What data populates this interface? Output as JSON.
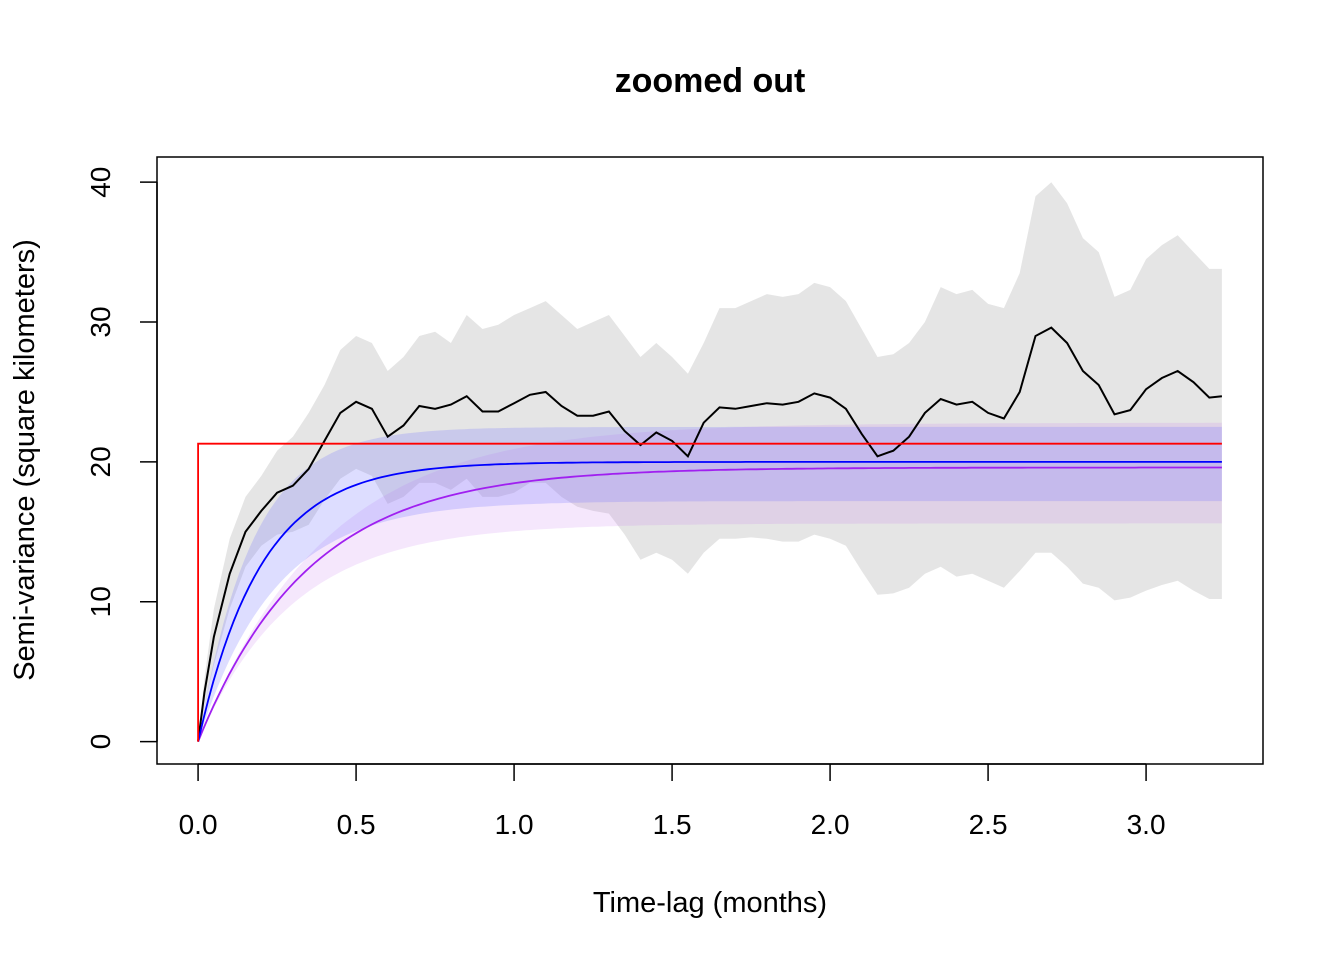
{
  "chart_data": {
    "type": "line",
    "title": "zoomed out",
    "xlabel": "Time-lag (months)",
    "ylabel": "Semi-variance (square kilometers)",
    "xlim": [
      -0.13,
      3.37
    ],
    "ylim": [
      -1.6,
      41.8
    ],
    "xticks": [
      "0.0",
      "0.5",
      "1.0",
      "1.5",
      "2.0",
      "2.5",
      "3.0"
    ],
    "yticks": [
      "0",
      "10",
      "20",
      "30",
      "40"
    ],
    "colors": {
      "empirical": "#000000",
      "empirical_ci": "#e5e5e5",
      "model_blue": "#0000ff",
      "model_blue_ci": "rgba(120,120,255,0.25)",
      "model_purple": "#a020f0",
      "model_purple_ci": "rgba(200,120,240,0.18)",
      "model_red": "#ff0000",
      "axes": "#000000"
    },
    "series": [
      {
        "key": "empirical",
        "style": "line",
        "x": [
          0,
          0.02,
          0.05,
          0.1,
          0.15,
          0.2,
          0.25,
          0.3,
          0.35,
          0.4,
          0.45,
          0.5,
          0.55,
          0.6,
          0.65,
          0.7,
          0.75,
          0.8,
          0.85,
          0.9,
          0.95,
          1.0,
          1.05,
          1.1,
          1.15,
          1.2,
          1.25,
          1.3,
          1.35,
          1.4,
          1.45,
          1.5,
          1.55,
          1.6,
          1.65,
          1.7,
          1.75,
          1.8,
          1.85,
          1.9,
          1.95,
          2.0,
          2.05,
          2.1,
          2.15,
          2.2,
          2.25,
          2.3,
          2.35,
          2.4,
          2.45,
          2.5,
          2.55,
          2.6,
          2.65,
          2.7,
          2.75,
          2.8,
          2.85,
          2.9,
          2.95,
          3.0,
          3.05,
          3.1,
          3.15,
          3.2,
          3.24
        ],
        "y": [
          0,
          3.5,
          7.5,
          12.0,
          15.0,
          16.5,
          17.8,
          18.3,
          19.5,
          21.5,
          23.5,
          24.3,
          23.8,
          21.8,
          22.6,
          24.0,
          23.8,
          24.1,
          24.7,
          23.6,
          23.6,
          24.2,
          24.8,
          25.0,
          24.0,
          23.3,
          23.3,
          23.6,
          22.2,
          21.2,
          22.1,
          21.5,
          20.4,
          22.8,
          23.9,
          23.8,
          24.0,
          24.2,
          24.1,
          24.3,
          24.9,
          24.6,
          23.8,
          22.0,
          20.4,
          20.8,
          21.8,
          23.5,
          24.5,
          24.1,
          24.3,
          23.5,
          23.1,
          25.0,
          29.0,
          29.6,
          28.5,
          26.5,
          25.5,
          23.4,
          23.7,
          25.2,
          26.0,
          26.5,
          25.7,
          24.6,
          24.7
        ]
      },
      {
        "key": "empirical_ci",
        "style": "band",
        "x": [
          0,
          0.02,
          0.05,
          0.1,
          0.15,
          0.2,
          0.25,
          0.3,
          0.35,
          0.4,
          0.45,
          0.5,
          0.55,
          0.6,
          0.65,
          0.7,
          0.75,
          0.8,
          0.85,
          0.9,
          0.95,
          1.0,
          1.05,
          1.1,
          1.15,
          1.2,
          1.25,
          1.3,
          1.35,
          1.4,
          1.45,
          1.5,
          1.55,
          1.6,
          1.65,
          1.7,
          1.75,
          1.8,
          1.85,
          1.9,
          1.95,
          2.0,
          2.05,
          2.1,
          2.15,
          2.2,
          2.25,
          2.3,
          2.35,
          2.4,
          2.45,
          2.5,
          2.55,
          2.6,
          2.65,
          2.7,
          2.75,
          2.8,
          2.85,
          2.9,
          2.95,
          3.0,
          3.05,
          3.1,
          3.15,
          3.2,
          3.24
        ],
        "upper": [
          0,
          4.5,
          9.5,
          14.5,
          17.5,
          19.0,
          20.8,
          21.8,
          23.5,
          25.5,
          28.0,
          29.0,
          28.5,
          26.5,
          27.5,
          29.0,
          29.3,
          28.5,
          30.5,
          29.5,
          29.8,
          30.5,
          31.0,
          31.5,
          30.5,
          29.5,
          30.0,
          30.5,
          29.0,
          27.5,
          28.5,
          27.5,
          26.3,
          28.5,
          31.0,
          31.0,
          31.5,
          32.0,
          31.8,
          32.0,
          32.8,
          32.5,
          31.5,
          29.5,
          27.5,
          27.7,
          28.5,
          30.0,
          32.5,
          32.0,
          32.3,
          31.3,
          31.0,
          33.5,
          39.0,
          40.0,
          38.5,
          36.0,
          35.0,
          31.8,
          32.3,
          34.5,
          35.5,
          36.2,
          35.0,
          33.8,
          33.8
        ]
      },
      {
        "key": "empirical_ci_lower",
        "style": "band-lower",
        "x": [
          0,
          0.02,
          0.05,
          0.1,
          0.15,
          0.2,
          0.25,
          0.3,
          0.35,
          0.4,
          0.45,
          0.5,
          0.55,
          0.6,
          0.65,
          0.7,
          0.75,
          0.8,
          0.85,
          0.9,
          0.95,
          1.0,
          1.05,
          1.1,
          1.15,
          1.2,
          1.25,
          1.3,
          1.35,
          1.4,
          1.45,
          1.5,
          1.55,
          1.6,
          1.65,
          1.7,
          1.75,
          1.8,
          1.85,
          1.9,
          1.95,
          2.0,
          2.05,
          2.1,
          2.15,
          2.2,
          2.25,
          2.3,
          2.35,
          2.4,
          2.45,
          2.5,
          2.55,
          2.6,
          2.65,
          2.7,
          2.75,
          2.8,
          2.85,
          2.9,
          2.95,
          3.0,
          3.05,
          3.1,
          3.15,
          3.2,
          3.24
        ],
        "lower": [
          0,
          2.5,
          5.5,
          9.5,
          12.5,
          14.0,
          14.8,
          15.0,
          15.5,
          17.3,
          18.8,
          19.5,
          19.0,
          17.0,
          17.5,
          18.5,
          18.5,
          18.0,
          18.8,
          17.5,
          17.5,
          17.8,
          18.5,
          18.5,
          17.5,
          16.8,
          16.5,
          16.3,
          14.8,
          13.0,
          13.5,
          13.0,
          12.0,
          13.5,
          14.5,
          14.5,
          14.6,
          14.5,
          14.3,
          14.3,
          14.8,
          14.5,
          14.0,
          12.2,
          10.5,
          10.6,
          11.0,
          12.0,
          12.5,
          11.8,
          12.0,
          11.5,
          11.0,
          12.2,
          13.5,
          13.5,
          12.5,
          11.3,
          11.0,
          10.1,
          10.3,
          10.8,
          11.2,
          11.5,
          10.8,
          10.2,
          10.2
        ]
      },
      {
        "key": "model_blue",
        "style": "exp",
        "sill": 20.0,
        "tau": 0.2,
        "ci_lower_sill": 17.2,
        "ci_lower_tau": 0.24,
        "ci_upper_sill": 22.5,
        "ci_upper_tau": 0.17
      },
      {
        "key": "model_purple",
        "style": "exp",
        "sill": 19.6,
        "tau": 0.35,
        "ci_lower_sill": 15.6,
        "ci_lower_tau": 0.3,
        "ci_upper_sill": 22.8,
        "ci_upper_tau": 0.4
      },
      {
        "key": "model_red",
        "style": "step",
        "level": 21.3
      }
    ]
  }
}
